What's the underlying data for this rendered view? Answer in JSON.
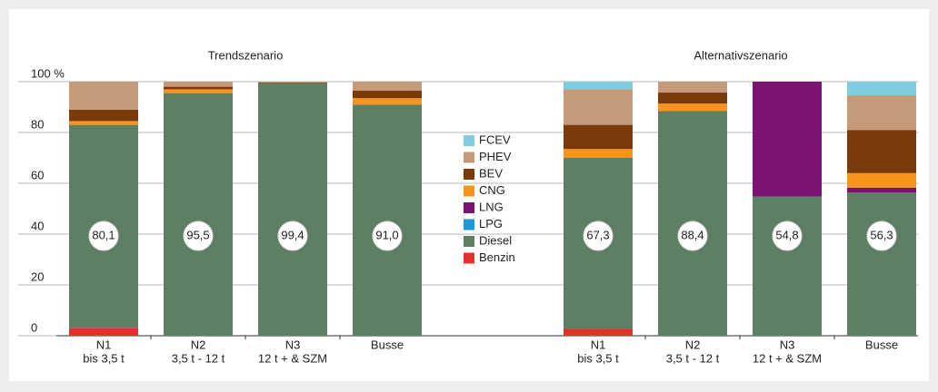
{
  "chart_data": [
    {
      "type": "stacked-bar",
      "title": "Trendszenario",
      "categories": [
        [
          "N1",
          "bis 3,5 t"
        ],
        [
          "N2",
          "3,5 t - 12 t"
        ],
        [
          "N3",
          "12 t + & SZM"
        ],
        [
          "Busse"
        ]
      ],
      "ylim": [
        0,
        100
      ],
      "yticks": [
        0,
        20,
        40,
        60,
        80,
        {
          "value": 100,
          "label": "100 %"
        }
      ],
      "grid": true,
      "series": [
        {
          "name": "Benzin",
          "color": "#e3312d",
          "values": [
            2.9,
            0,
            0,
            0
          ]
        },
        {
          "name": "Diesel",
          "color": "#5f7f64",
          "values": [
            80.1,
            95.5,
            99.4,
            91.0
          ],
          "value_labels": [
            "80,1",
            "95,5",
            "99,4",
            "91,0"
          ]
        },
        {
          "name": "LPG",
          "color": "#1a9ad6",
          "values": [
            0,
            0,
            0,
            0
          ]
        },
        {
          "name": "LNG",
          "color": "#7a1470",
          "values": [
            0,
            0,
            0,
            0
          ]
        },
        {
          "name": "CNG",
          "color": "#f7941d",
          "values": [
            1.5,
            1.5,
            0,
            2.5
          ]
        },
        {
          "name": "BEV",
          "color": "#7a3a0a",
          "values": [
            4.5,
            1,
            0.3,
            3
          ]
        },
        {
          "name": "PHEV",
          "color": "#c49a78",
          "values": [
            11,
            2,
            0.3,
            3.5
          ]
        },
        {
          "name": "FCEV",
          "color": "#7fcde0",
          "values": [
            0,
            0,
            0,
            0
          ]
        }
      ]
    },
    {
      "type": "stacked-bar",
      "title": "Alternativszenario",
      "categories": [
        [
          "N1",
          "bis 3,5 t"
        ],
        [
          "N2",
          "3,5 t - 12 t"
        ],
        [
          "N3",
          "12 t + & SZM"
        ],
        [
          "Busse"
        ]
      ],
      "ylim": [
        0,
        100
      ],
      "series": [
        {
          "name": "Benzin",
          "color": "#e3312d",
          "values": [
            2.7,
            0,
            0,
            0
          ]
        },
        {
          "name": "Diesel",
          "color": "#5f7f64",
          "values": [
            67.3,
            88.4,
            54.8,
            56.3
          ],
          "value_labels": [
            "67,3",
            "88,4",
            "54,8",
            "56,3"
          ]
        },
        {
          "name": "LPG",
          "color": "#1a9ad6",
          "values": [
            0,
            0,
            0,
            0
          ]
        },
        {
          "name": "LNG",
          "color": "#7a1470",
          "values": [
            0,
            0,
            45.2,
            2
          ]
        },
        {
          "name": "CNG",
          "color": "#f7941d",
          "values": [
            3.5,
            3,
            0,
            5.7
          ]
        },
        {
          "name": "BEV",
          "color": "#7a3a0a",
          "values": [
            9.5,
            4.3,
            0,
            17
          ]
        },
        {
          "name": "PHEV",
          "color": "#c49a78",
          "values": [
            14,
            4.3,
            0,
            13.6
          ]
        },
        {
          "name": "FCEV",
          "color": "#7fcde0",
          "values": [
            3,
            0,
            0,
            5.4
          ]
        }
      ]
    }
  ]
}
